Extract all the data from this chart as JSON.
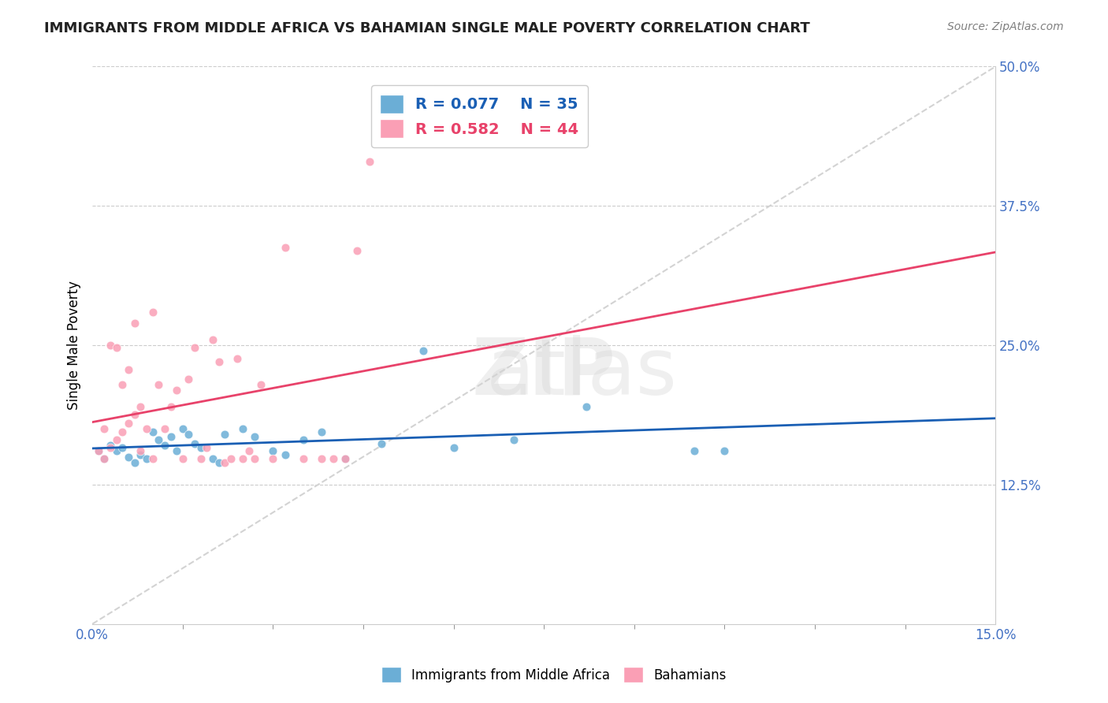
{
  "title": "IMMIGRANTS FROM MIDDLE AFRICA VS BAHAMIAN SINGLE MALE POVERTY CORRELATION CHART",
  "source": "Source: ZipAtlas.com",
  "xlabel": "",
  "ylabel": "Single Male Poverty",
  "xlim": [
    0.0,
    0.15
  ],
  "ylim": [
    0.0,
    0.5
  ],
  "xticks": [
    0.0,
    0.15
  ],
  "xtick_labels": [
    "0.0%",
    "15.0%"
  ],
  "yticks": [
    0.125,
    0.25,
    0.375,
    0.5
  ],
  "ytick_labels": [
    "12.5%",
    "25.0%",
    "37.5%",
    "50.0%"
  ],
  "legend1_R": "0.077",
  "legend1_N": "35",
  "legend2_R": "0.582",
  "legend2_N": "44",
  "blue_color": "#6BAED6",
  "pink_color": "#FA9FB5",
  "trendline_blue": "#1a5fb4",
  "trendline_pink": "#e8426a",
  "watermark": "ZIPatlas",
  "scatter_blue": [
    [
      0.001,
      0.155
    ],
    [
      0.002,
      0.148
    ],
    [
      0.003,
      0.16
    ],
    [
      0.004,
      0.155
    ],
    [
      0.005,
      0.158
    ],
    [
      0.006,
      0.15
    ],
    [
      0.007,
      0.145
    ],
    [
      0.008,
      0.152
    ],
    [
      0.009,
      0.148
    ],
    [
      0.01,
      0.172
    ],
    [
      0.011,
      0.165
    ],
    [
      0.012,
      0.16
    ],
    [
      0.013,
      0.168
    ],
    [
      0.014,
      0.155
    ],
    [
      0.015,
      0.175
    ],
    [
      0.016,
      0.17
    ],
    [
      0.017,
      0.162
    ],
    [
      0.018,
      0.158
    ],
    [
      0.02,
      0.148
    ],
    [
      0.021,
      0.145
    ],
    [
      0.022,
      0.17
    ],
    [
      0.025,
      0.175
    ],
    [
      0.027,
      0.168
    ],
    [
      0.03,
      0.155
    ],
    [
      0.032,
      0.152
    ],
    [
      0.035,
      0.165
    ],
    [
      0.038,
      0.172
    ],
    [
      0.042,
      0.148
    ],
    [
      0.048,
      0.162
    ],
    [
      0.055,
      0.245
    ],
    [
      0.06,
      0.158
    ],
    [
      0.07,
      0.165
    ],
    [
      0.082,
      0.195
    ],
    [
      0.1,
      0.155
    ],
    [
      0.105,
      0.155
    ]
  ],
  "scatter_pink": [
    [
      0.001,
      0.155
    ],
    [
      0.002,
      0.148
    ],
    [
      0.002,
      0.175
    ],
    [
      0.003,
      0.158
    ],
    [
      0.003,
      0.25
    ],
    [
      0.004,
      0.165
    ],
    [
      0.004,
      0.248
    ],
    [
      0.005,
      0.172
    ],
    [
      0.005,
      0.215
    ],
    [
      0.006,
      0.18
    ],
    [
      0.006,
      0.228
    ],
    [
      0.007,
      0.188
    ],
    [
      0.007,
      0.27
    ],
    [
      0.008,
      0.195
    ],
    [
      0.008,
      0.155
    ],
    [
      0.009,
      0.175
    ],
    [
      0.01,
      0.148
    ],
    [
      0.01,
      0.28
    ],
    [
      0.011,
      0.215
    ],
    [
      0.012,
      0.175
    ],
    [
      0.013,
      0.195
    ],
    [
      0.014,
      0.21
    ],
    [
      0.015,
      0.148
    ],
    [
      0.016,
      0.22
    ],
    [
      0.017,
      0.248
    ],
    [
      0.018,
      0.148
    ],
    [
      0.019,
      0.158
    ],
    [
      0.02,
      0.255
    ],
    [
      0.021,
      0.235
    ],
    [
      0.022,
      0.145
    ],
    [
      0.023,
      0.148
    ],
    [
      0.024,
      0.238
    ],
    [
      0.025,
      0.148
    ],
    [
      0.026,
      0.155
    ],
    [
      0.027,
      0.148
    ],
    [
      0.028,
      0.215
    ],
    [
      0.03,
      0.148
    ],
    [
      0.032,
      0.338
    ],
    [
      0.035,
      0.148
    ],
    [
      0.038,
      0.148
    ],
    [
      0.04,
      0.148
    ],
    [
      0.042,
      0.148
    ],
    [
      0.044,
      0.335
    ],
    [
      0.046,
      0.415
    ]
  ]
}
